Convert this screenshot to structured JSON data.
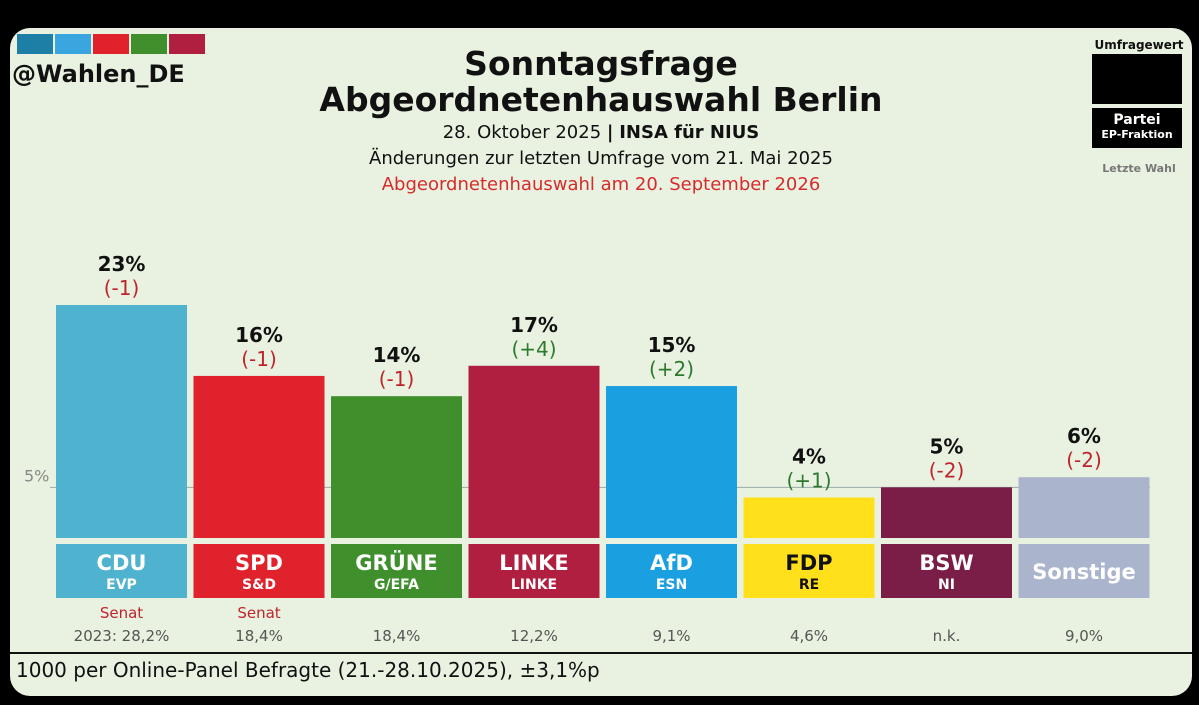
{
  "header": {
    "handle": "@Wahlen_DE",
    "title_line1": "Sonntagsfrage",
    "title_line2": "Abgeordnetenhauswahl Berlin",
    "date_text": "28. Oktober 2025",
    "separator": "|",
    "institute": "INSA für NIUS",
    "changes_note": "Änderungen zur letzten Umfrage vom 21. Mai 2025",
    "election_note": "Abgeordnetenhauswahl am 20. September 2026"
  },
  "legend": {
    "title": "Umfragewert",
    "party_label": "Partei",
    "group_label": "EP-Fraktion",
    "last_label": "Letzte Wahl"
  },
  "logo_colors": [
    "#1e7fa6",
    "#3aa6e0",
    "#e0222d",
    "#3f8f2c",
    "#b01f3f"
  ],
  "footnote": "1000 per Online-Panel Befragte (21.-28.10.2025), ±3,1%p",
  "chart_data": {
    "type": "bar",
    "categories": [
      "CDU",
      "SPD",
      "GRÜNE",
      "LINKE",
      "AfD",
      "FDP",
      "BSW",
      "Sonstige"
    ],
    "groups": [
      "EVP",
      "S&D",
      "G/EFA",
      "LINKE",
      "ESN",
      "RE",
      "NI",
      ""
    ],
    "values": [
      23,
      16,
      14,
      17,
      15,
      4,
      5,
      6
    ],
    "value_labels": [
      "23%",
      "16%",
      "14%",
      "17%",
      "15%",
      "4%",
      "5%",
      "6%"
    ],
    "changes": [
      "(-1)",
      "(-1)",
      "(-1)",
      "(+4)",
      "(+2)",
      "(+1)",
      "(-2)",
      "(-2)"
    ],
    "change_sign": [
      "neg",
      "neg",
      "neg",
      "pos",
      "pos",
      "pos",
      "neg",
      "neg"
    ],
    "colors": [
      "#4fb3cf",
      "#e0222d",
      "#3f8f2c",
      "#b01f3f",
      "#1a9fe0",
      "#ffe01a",
      "#7a1e48",
      "#aab4cc"
    ],
    "label_colors": [
      "#ffffff",
      "#ffffff",
      "#ffffff",
      "#ffffff",
      "#ffffff",
      "#111111",
      "#ffffff",
      "#ffffff"
    ],
    "senat": [
      "Senat",
      "Senat",
      "",
      "",
      "",
      "",
      "",
      ""
    ],
    "last_election": [
      "2023: 28,2%",
      "18,4%",
      "18,4%",
      "12,2%",
      "9,1%",
      "4,6%",
      "n.k.",
      "9,0%"
    ],
    "threshold": 5,
    "threshold_label": "5%",
    "ylim": [
      0,
      23
    ],
    "pos_color": "#2c7a2c",
    "neg_color": "#c0232b"
  }
}
